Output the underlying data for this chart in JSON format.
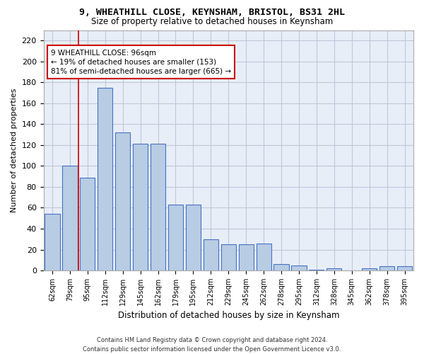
{
  "title_line1": "9, WHEATHILL CLOSE, KEYNSHAM, BRISTOL, BS31 2HL",
  "title_line2": "Size of property relative to detached houses in Keynsham",
  "xlabel": "Distribution of detached houses by size in Keynsham",
  "ylabel": "Number of detached properties",
  "categories": [
    "62sqm",
    "79sqm",
    "95sqm",
    "112sqm",
    "129sqm",
    "145sqm",
    "162sqm",
    "179sqm",
    "195sqm",
    "212sqm",
    "229sqm",
    "245sqm",
    "262sqm",
    "278sqm",
    "295sqm",
    "312sqm",
    "328sqm",
    "345sqm",
    "362sqm",
    "378sqm",
    "395sqm"
  ],
  "values": [
    54,
    100,
    89,
    175,
    132,
    121,
    121,
    63,
    63,
    30,
    25,
    25,
    26,
    6,
    5,
    1,
    2,
    0,
    2,
    4,
    4
  ],
  "bar_color": "#b8cce4",
  "bar_edge_color": "#4472c4",
  "grid_color": "#c0c8d8",
  "background_color": "#e8eef8",
  "annotation_text": "9 WHEATHILL CLOSE: 96sqm\n← 19% of detached houses are smaller (153)\n81% of semi-detached houses are larger (665) →",
  "annotation_box_edge": "#cc0000",
  "vline_x_index": 1.5,
  "ylim": [
    0,
    230
  ],
  "yticks": [
    0,
    20,
    40,
    60,
    80,
    100,
    120,
    140,
    160,
    180,
    200,
    220
  ],
  "footer_line1": "Contains HM Land Registry data © Crown copyright and database right 2024.",
  "footer_line2": "Contains public sector information licensed under the Open Government Licence v3.0."
}
